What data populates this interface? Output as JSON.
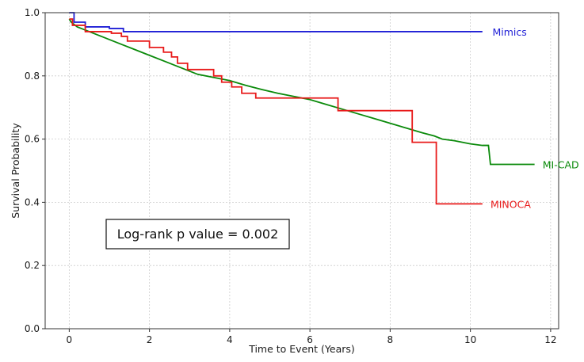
{
  "chart_data": {
    "type": "line",
    "title": "",
    "xlabel": "Time to Event (Years)",
    "ylabel": "Survival Probability",
    "xlim": [
      -0.6,
      12.2
    ],
    "ylim": [
      0.0,
      1.0
    ],
    "xticks": [
      0,
      2,
      4,
      6,
      8,
      10,
      12
    ],
    "yticks": [
      0.0,
      0.2,
      0.4,
      0.6,
      0.8,
      1.0
    ],
    "xtick_labels": [
      "0",
      "2",
      "4",
      "6",
      "8",
      "10",
      "12"
    ],
    "ytick_labels": [
      "0.0",
      "0.2",
      "0.4",
      "0.6",
      "0.8",
      "1.0"
    ],
    "grid": true,
    "legend": "none",
    "series": [
      {
        "name": "Mimics",
        "color": "#1f1fd6",
        "step": true,
        "x": [
          0,
          0.12,
          0.4,
          1.0,
          1.35,
          10.3
        ],
        "y": [
          1.0,
          0.97,
          0.955,
          0.95,
          0.94,
          0.94
        ]
      },
      {
        "name": "MI-CAD",
        "color": "#0a8a0a",
        "step": false,
        "x": [
          0.0,
          0.05,
          0.1,
          0.2,
          0.3,
          0.5,
          0.7,
          1.0,
          1.3,
          1.6,
          2.0,
          2.4,
          2.8,
          3.2,
          3.6,
          4.0,
          4.4,
          4.8,
          5.2,
          5.6,
          6.0,
          6.4,
          6.8,
          7.2,
          7.6,
          8.0,
          8.4,
          8.8,
          9.1,
          9.3,
          9.6,
          10.0,
          10.3,
          10.45,
          10.5,
          11.6
        ],
        "y": [
          0.98,
          0.97,
          0.965,
          0.955,
          0.95,
          0.94,
          0.93,
          0.915,
          0.9,
          0.885,
          0.865,
          0.845,
          0.825,
          0.805,
          0.795,
          0.785,
          0.77,
          0.757,
          0.745,
          0.735,
          0.725,
          0.71,
          0.695,
          0.68,
          0.665,
          0.65,
          0.635,
          0.62,
          0.61,
          0.6,
          0.595,
          0.585,
          0.58,
          0.58,
          0.52,
          0.52
        ]
      },
      {
        "name": "MINOCA",
        "color": "#e81a1a",
        "step": true,
        "x": [
          0,
          0.08,
          0.4,
          1.05,
          1.3,
          1.45,
          2.0,
          2.35,
          2.55,
          2.7,
          2.95,
          3.6,
          3.8,
          4.05,
          4.3,
          4.65,
          6.7,
          8.55,
          9.15,
          10.3
        ],
        "y": [
          0.98,
          0.96,
          0.94,
          0.935,
          0.925,
          0.91,
          0.89,
          0.875,
          0.86,
          0.84,
          0.82,
          0.8,
          0.78,
          0.765,
          0.745,
          0.73,
          0.69,
          0.59,
          0.395,
          0.395
        ]
      }
    ],
    "series_labels": [
      {
        "text": "Mimics",
        "x": 10.55,
        "y": 0.94,
        "color": "#1f1fd6"
      },
      {
        "text": "MI-CAD",
        "x": 11.8,
        "y": 0.52,
        "color": "#0a8a0a"
      },
      {
        "text": "MINOCA",
        "x": 10.5,
        "y": 0.395,
        "color": "#e81a1a"
      }
    ],
    "annotation": "Log-rank p value = 0.002"
  }
}
